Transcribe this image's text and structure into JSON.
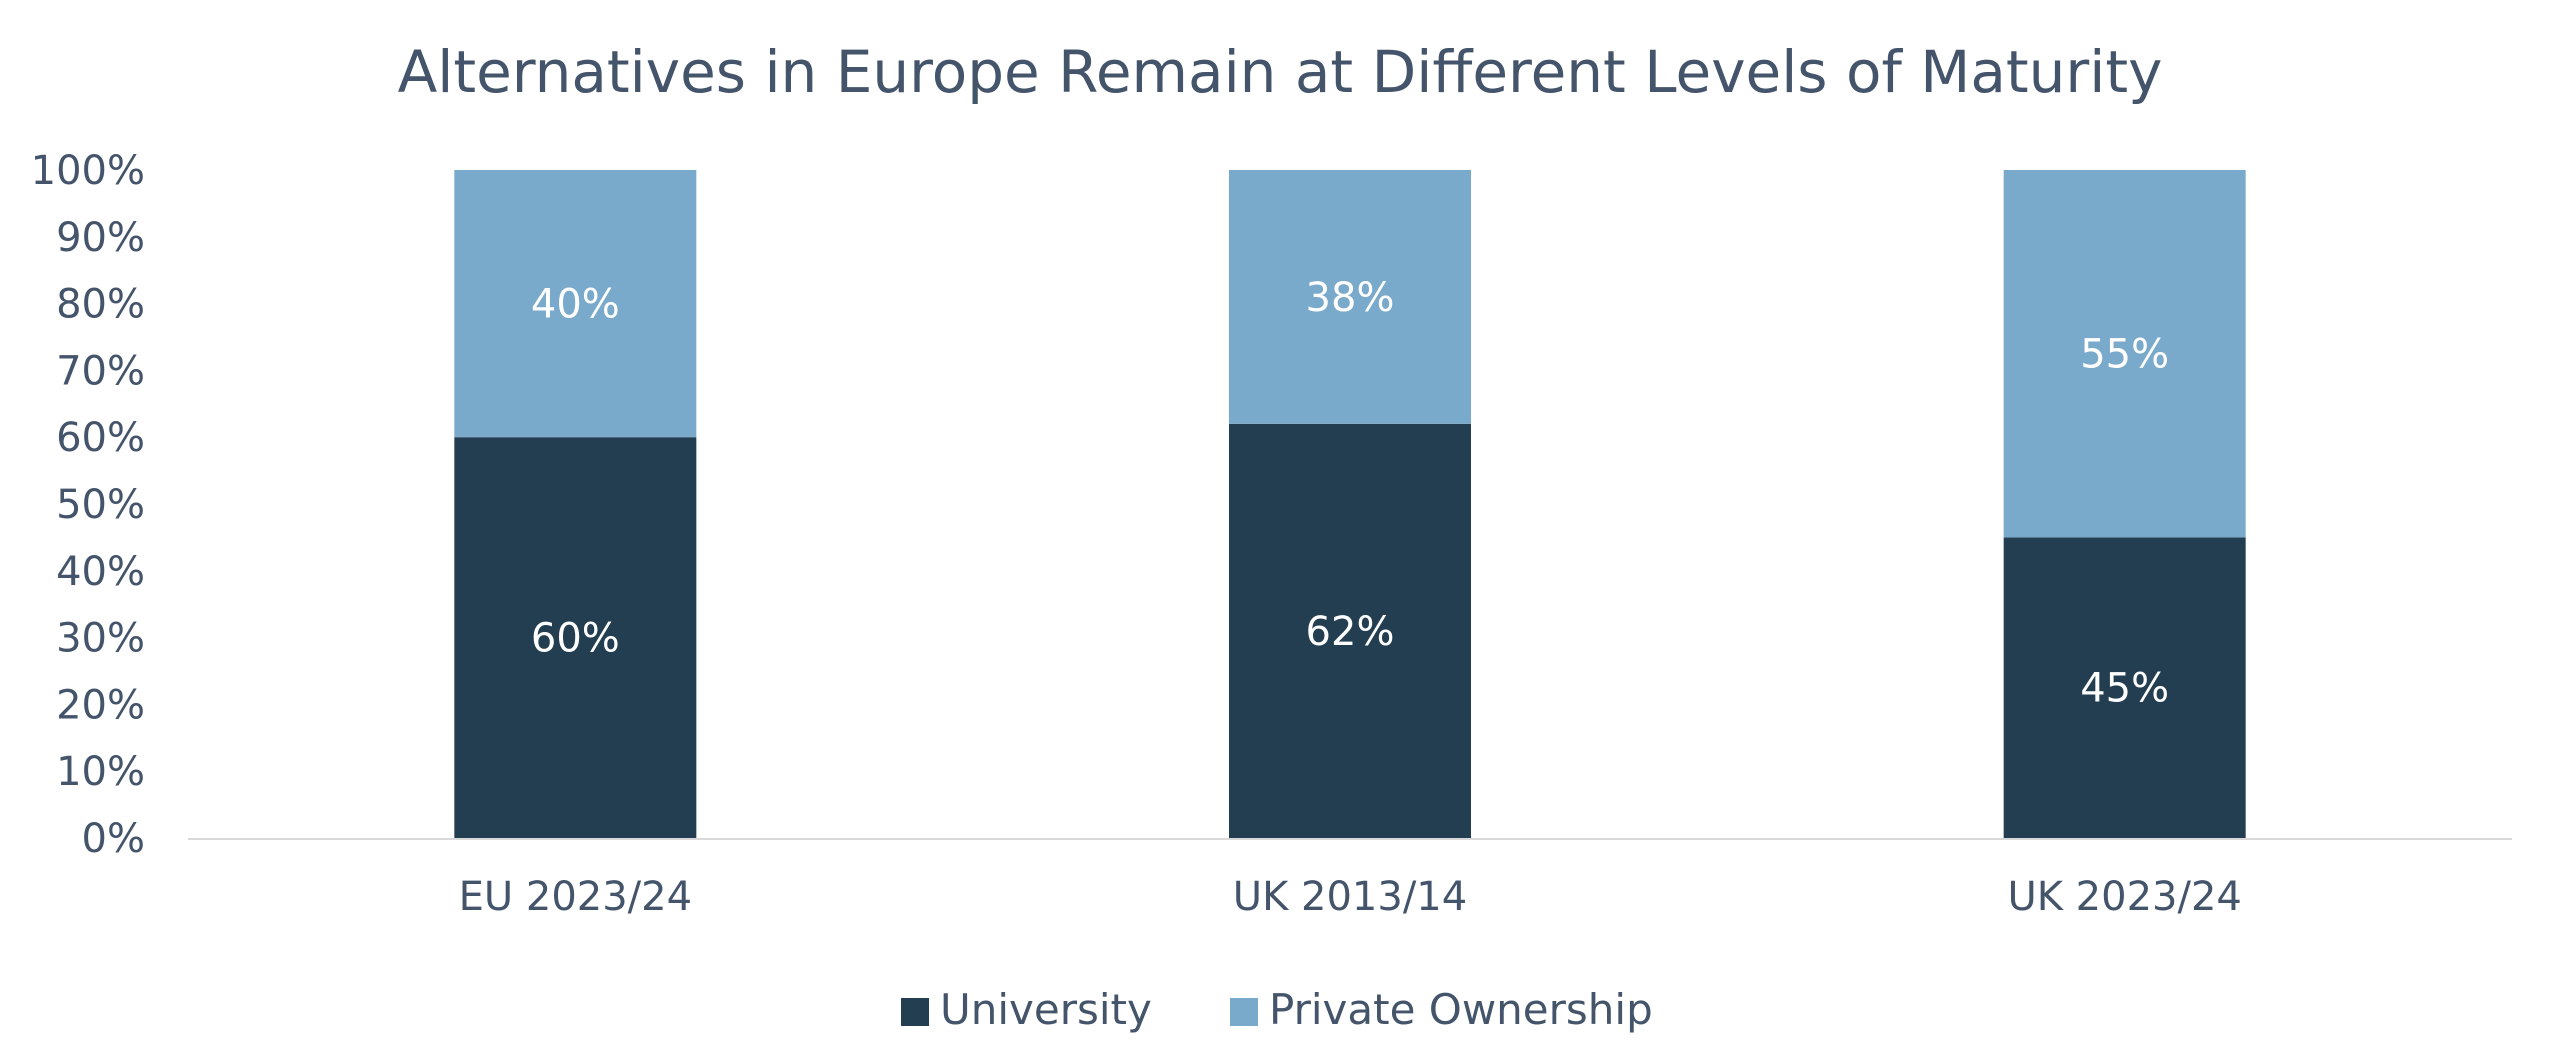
{
  "chart_data": {
    "type": "bar",
    "stacked": true,
    "title": "Alternatives in Europe Remain at Different Levels of Maturity",
    "xlabel": "",
    "ylabel": "",
    "categories": [
      "EU 2023/24",
      "UK 2013/14",
      "UK 2023/24"
    ],
    "series": [
      {
        "name": "University",
        "values": [
          60,
          62,
          45
        ],
        "labels": [
          "60%",
          "62%",
          "45%"
        ],
        "color": "#233d51"
      },
      {
        "name": "Private Ownership",
        "values": [
          40,
          38,
          55
        ],
        "labels": [
          "40%",
          "38%",
          "55%"
        ],
        "color": "#7aaacb"
      }
    ],
    "ylim": [
      0,
      100
    ],
    "yticks": [
      0,
      10,
      20,
      30,
      40,
      50,
      60,
      70,
      80,
      90,
      100
    ],
    "ytick_labels": [
      "0%",
      "10%",
      "20%",
      "30%",
      "40%",
      "50%",
      "60%",
      "70%",
      "80%",
      "90%",
      "100%"
    ],
    "grid": false,
    "legend_position": "bottom-center",
    "axis_color": "#d9d9d9",
    "text_color": "#44546a"
  }
}
